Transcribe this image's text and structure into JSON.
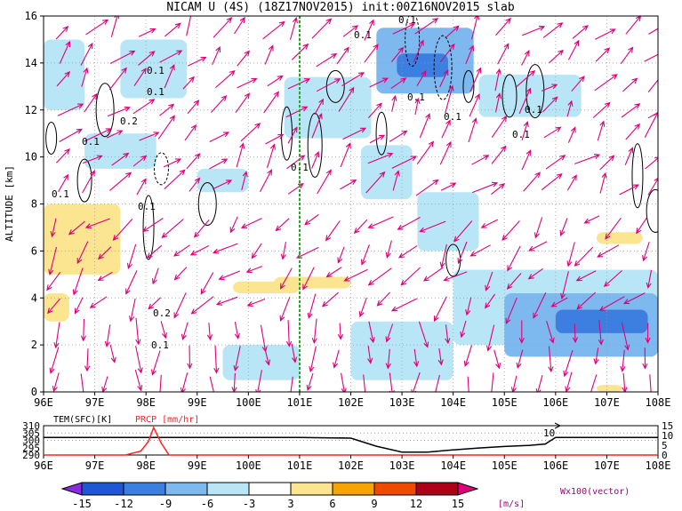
{
  "title": "NICAM U (4S) (18Z17NOV2015) init:00Z16NOV2015 slab",
  "ylabel": "ALTITUDE [km]",
  "x_ticks": [
    "96E",
    "97E",
    "98E",
    "99E",
    "100E",
    "101E",
    "102E",
    "103E",
    "104E",
    "105E",
    "106E",
    "107E",
    "108E"
  ],
  "y_ticks": [
    "0",
    "2",
    "4",
    "6",
    "8",
    "10",
    "12",
    "14",
    "16"
  ],
  "contour_labels": [
    "0.1",
    "0.1",
    "0.2",
    "0.1",
    "0.1",
    "0.1",
    "0.1",
    "0.2",
    "0.1",
    "0.1",
    "0.1",
    "0.1",
    "0.1",
    "0.1",
    "0.1"
  ],
  "lower_panel": {
    "tem_label": "TEM(SFC)[K]",
    "prcp_label": "PRCP [mm/hr]",
    "left_ticks": [
      "310",
      "305",
      "300",
      "295",
      "290"
    ],
    "right_ticks": [
      "15",
      "10",
      "5",
      "0"
    ],
    "annotation": "10"
  },
  "colorbar": {
    "labels": [
      "-15",
      "-12",
      "-9",
      "-6",
      "-3",
      "3",
      "6",
      "9",
      "12",
      "15"
    ],
    "unit": "[m/s]",
    "colors": [
      "#8a2be2",
      "#1f56d6",
      "#3c7fe0",
      "#7db8ef",
      "#b8e6f6",
      "#ffffff",
      "#fbe590",
      "#f7a300",
      "#f04a00",
      "#b00018",
      "#e0007a"
    ]
  },
  "vector_label": "Wx100(vector)",
  "colors": {
    "vector": "#e0007a",
    "dashed_line": "#22aa22",
    "contour": "#000000",
    "prcp": "#ff2020",
    "tem": "#000000"
  },
  "chart_data": {
    "type": "heatmap",
    "title": "NICAM U (4S) (18Z17NOV2015) init:00Z16NOV2015 slab",
    "xlabel": "",
    "ylabel": "ALTITUDE [km]",
    "xlim": [
      96,
      108
    ],
    "ylim": [
      0,
      16
    ],
    "marker_longitude": 101,
    "shaded_regions": [
      {
        "lon": [
          96,
          97.5
        ],
        "alt": [
          5,
          8
        ],
        "u": 4.5
      },
      {
        "lon": [
          96,
          96.5
        ],
        "alt": [
          3,
          4.2
        ],
        "u": 4
      },
      {
        "lon": [
          99.7,
          101
        ],
        "alt": [
          4.2,
          4.7
        ],
        "u": 4
      },
      {
        "lon": [
          100.5,
          102
        ],
        "alt": [
          4.4,
          4.9
        ],
        "u": 4
      },
      {
        "lon": [
          106.8,
          107.7
        ],
        "alt": [
          6.3,
          6.8
        ],
        "u": 4
      },
      {
        "lon": [
          106.8,
          107.3
        ],
        "alt": [
          0,
          0.3
        ],
        "u": 4
      },
      {
        "lon": [
          100.7,
          102.4
        ],
        "alt": [
          10.8,
          13.4
        ],
        "u": -4
      },
      {
        "lon": [
          96,
          96.8
        ],
        "alt": [
          12,
          15
        ],
        "u": -4
      },
      {
        "lon": [
          97.5,
          98.8
        ],
        "alt": [
          12.5,
          15
        ],
        "u": -4
      },
      {
        "lon": [
          102.5,
          104.4
        ],
        "alt": [
          12.7,
          15.5
        ],
        "u": -7
      },
      {
        "lon": [
          102.9,
          103.9
        ],
        "alt": [
          13.4,
          14.4
        ],
        "u": -10
      },
      {
        "lon": [
          104.5,
          106.5
        ],
        "alt": [
          11.7,
          13.5
        ],
        "u": -4
      },
      {
        "lon": [
          102.2,
          103.2
        ],
        "alt": [
          8.2,
          10.5
        ],
        "u": -4
      },
      {
        "lon": [
          103.3,
          104.5
        ],
        "alt": [
          6,
          8.5
        ],
        "u": -4
      },
      {
        "lon": [
          96.8,
          98.2
        ],
        "alt": [
          9.5,
          11
        ],
        "u": -4
      },
      {
        "lon": [
          99,
          100
        ],
        "alt": [
          8.5,
          9.5
        ],
        "u": -4
      },
      {
        "lon": [
          104,
          108
        ],
        "alt": [
          2,
          5.2
        ],
        "u": -5
      },
      {
        "lon": [
          105,
          108
        ],
        "alt": [
          1.5,
          4.2
        ],
        "u": -8
      },
      {
        "lon": [
          106,
          107.8
        ],
        "alt": [
          2.5,
          3.5
        ],
        "u": -10
      },
      {
        "lon": [
          102,
          104
        ],
        "alt": [
          0.5,
          3
        ],
        "u": -4
      },
      {
        "lon": [
          99.5,
          101
        ],
        "alt": [
          0.5,
          2
        ],
        "u": -4
      }
    ],
    "contour_line_positions": [
      {
        "lon": 96.15,
        "alt": 10.8
      },
      {
        "lon": 96.8,
        "alt": 9
      },
      {
        "lon": 97.2,
        "alt": 12
      },
      {
        "lon": 98.05,
        "alt": 7
      },
      {
        "lon": 98.3,
        "alt": 9.5
      },
      {
        "lon": 99.2,
        "alt": 8
      },
      {
        "lon": 100.75,
        "alt": 11
      },
      {
        "lon": 101.3,
        "alt": 10.5
      },
      {
        "lon": 101.7,
        "alt": 13
      },
      {
        "lon": 102.6,
        "alt": 11
      },
      {
        "lon": 103.2,
        "alt": 15
      },
      {
        "lon": 103.8,
        "alt": 13.8
      },
      {
        "lon": 104.3,
        "alt": 13
      },
      {
        "lon": 105.1,
        "alt": 12.6
      },
      {
        "lon": 105.6,
        "alt": 12.8
      },
      {
        "lon": 107.6,
        "alt": 9.2
      },
      {
        "lon": 104,
        "alt": 5.6
      },
      {
        "lon": 107.95,
        "alt": 7.7
      }
    ],
    "tem_sfc": {
      "lon": [
        96,
        101,
        102,
        102.5,
        103,
        103.5,
        104,
        104.5,
        105,
        105.5,
        105.8,
        106,
        108
      ],
      "values": [
        302,
        302,
        301.5,
        296,
        292,
        292,
        293.5,
        294.8,
        295.8,
        296.6,
        297.5,
        302,
        302
      ]
    },
    "prcp": {
      "lon": [
        96,
        97.6,
        97.9,
        98.05,
        98.15,
        98.3,
        98.45,
        108
      ],
      "values": [
        0,
        0,
        2,
        7,
        14,
        6,
        0,
        0
      ]
    }
  }
}
